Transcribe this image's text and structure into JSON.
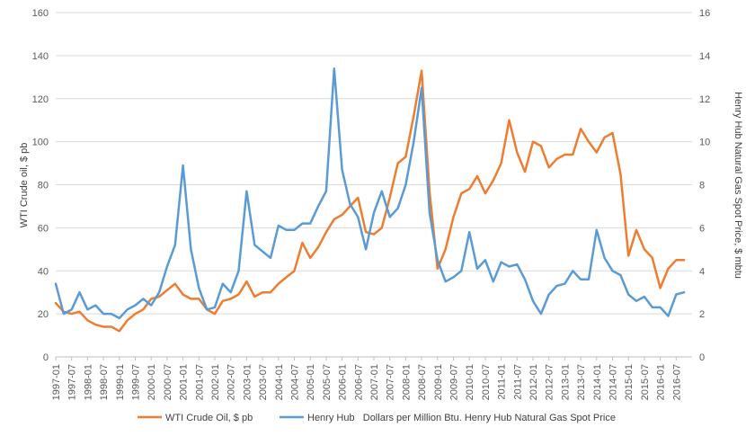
{
  "chart_data": {
    "type": "line",
    "title": "",
    "xlabel": "",
    "ylabel": "WTI Crude oil, $ pb",
    "y2label": "Henry Hub Natural  Gas Spot Price, $ mbtu",
    "ylim": [
      0,
      160
    ],
    "y2lim": [
      0,
      16
    ],
    "yticks": [
      "0",
      "20",
      "40",
      "60",
      "80",
      "100",
      "120",
      "140",
      "160"
    ],
    "y2ticks": [
      "0",
      "2",
      "4",
      "6",
      "8",
      "10",
      "12",
      "14",
      "16"
    ],
    "xticks": [
      "1997-01",
      "1997-07",
      "1998-01",
      "1998-07",
      "1999-01",
      "1999-07",
      "2000-01",
      "2000-07",
      "2001-01",
      "2001-07",
      "2002-01",
      "2002-07",
      "2003-01",
      "2003-07",
      "2004-01",
      "2004-07",
      "2005-01",
      "2005-07",
      "2006-01",
      "2006-07",
      "2007-01",
      "2007-07",
      "2008-01",
      "2008-07",
      "2009-01",
      "2009-07",
      "2010-01",
      "2010-07",
      "2011-01",
      "2011-07",
      "2012-01",
      "2012-07",
      "2013-01",
      "2013-07",
      "2014-01",
      "2014-07",
      "2015-01",
      "2015-07",
      "2016-01",
      "2016-07"
    ],
    "grid": true,
    "legend_position": "bottom",
    "series": [
      {
        "name": "WTI Crude Oil, $ pb",
        "axis": "left",
        "color": "#ED7D31",
        "x": [
          "1997-01",
          "1997-04",
          "1997-07",
          "1997-10",
          "1998-01",
          "1998-04",
          "1998-07",
          "1998-10",
          "1999-01",
          "1999-04",
          "1999-07",
          "1999-10",
          "2000-01",
          "2000-04",
          "2000-07",
          "2000-10",
          "2001-01",
          "2001-04",
          "2001-07",
          "2001-10",
          "2002-01",
          "2002-04",
          "2002-07",
          "2002-10",
          "2003-01",
          "2003-04",
          "2003-07",
          "2003-10",
          "2004-01",
          "2004-04",
          "2004-07",
          "2004-10",
          "2005-01",
          "2005-04",
          "2005-07",
          "2005-10",
          "2006-01",
          "2006-04",
          "2006-07",
          "2006-10",
          "2007-01",
          "2007-04",
          "2007-07",
          "2007-10",
          "2008-01",
          "2008-04",
          "2008-07",
          "2008-10",
          "2009-01",
          "2009-04",
          "2009-07",
          "2009-10",
          "2010-01",
          "2010-04",
          "2010-07",
          "2010-10",
          "2011-01",
          "2011-04",
          "2011-07",
          "2011-10",
          "2012-01",
          "2012-04",
          "2012-07",
          "2012-10",
          "2013-01",
          "2013-04",
          "2013-07",
          "2013-10",
          "2014-01",
          "2014-04",
          "2014-07",
          "2014-10",
          "2015-01",
          "2015-04",
          "2015-07",
          "2015-10",
          "2016-01",
          "2016-04",
          "2016-07",
          "2016-10"
        ],
        "values": [
          25,
          21,
          20,
          21,
          17,
          15,
          14,
          14,
          12,
          17,
          20,
          22,
          27,
          28,
          31,
          34,
          29,
          27,
          27,
          22,
          20,
          26,
          27,
          29,
          35,
          28,
          30,
          30,
          34,
          37,
          40,
          53,
          46,
          51,
          58,
          64,
          66,
          70,
          74,
          58,
          57,
          60,
          74,
          90,
          93,
          112,
          133,
          77,
          41,
          50,
          65,
          76,
          78,
          84,
          76,
          82,
          90,
          110,
          95,
          86,
          100,
          98,
          88,
          92,
          94,
          94,
          106,
          100,
          95,
          102,
          104,
          85,
          47,
          59,
          50,
          46,
          32,
          41,
          45,
          45
        ]
      },
      {
        "name": "Henry Hub   Dollars per Million Btu. Henry Hub Natural Gas Spot Price",
        "axis": "right",
        "color": "#5B9BD5",
        "x": [
          "1997-01",
          "1997-04",
          "1997-07",
          "1997-10",
          "1998-01",
          "1998-04",
          "1998-07",
          "1998-10",
          "1999-01",
          "1999-04",
          "1999-07",
          "1999-10",
          "2000-01",
          "2000-04",
          "2000-07",
          "2000-10",
          "2001-01",
          "2001-04",
          "2001-07",
          "2001-10",
          "2002-01",
          "2002-04",
          "2002-07",
          "2002-10",
          "2003-01",
          "2003-04",
          "2003-07",
          "2003-10",
          "2004-01",
          "2004-04",
          "2004-07",
          "2004-10",
          "2005-01",
          "2005-04",
          "2005-07",
          "2005-10",
          "2006-01",
          "2006-04",
          "2006-07",
          "2006-10",
          "2007-01",
          "2007-04",
          "2007-07",
          "2007-10",
          "2008-01",
          "2008-04",
          "2008-07",
          "2008-10",
          "2009-01",
          "2009-04",
          "2009-07",
          "2009-10",
          "2010-01",
          "2010-04",
          "2010-07",
          "2010-10",
          "2011-01",
          "2011-04",
          "2011-07",
          "2011-10",
          "2012-01",
          "2012-04",
          "2012-07",
          "2012-10",
          "2013-01",
          "2013-04",
          "2013-07",
          "2013-10",
          "2014-01",
          "2014-04",
          "2014-07",
          "2014-10",
          "2015-01",
          "2015-04",
          "2015-07",
          "2015-10",
          "2016-01",
          "2016-04",
          "2016-07",
          "2016-10"
        ],
        "values": [
          3.4,
          2.0,
          2.2,
          3.0,
          2.2,
          2.4,
          2.0,
          2.0,
          1.8,
          2.2,
          2.4,
          2.7,
          2.4,
          3.0,
          4.2,
          5.2,
          8.9,
          5.0,
          3.2,
          2.2,
          2.3,
          3.4,
          3.0,
          4.0,
          7.7,
          5.2,
          4.9,
          4.6,
          6.1,
          5.9,
          5.9,
          6.2,
          6.2,
          7.0,
          7.7,
          13.4,
          8.7,
          7.1,
          6.5,
          5.0,
          6.7,
          7.7,
          6.5,
          6.9,
          8.0,
          10.0,
          12.5,
          6.7,
          4.5,
          3.5,
          3.7,
          4.0,
          5.8,
          4.1,
          4.5,
          3.5,
          4.4,
          4.2,
          4.3,
          3.6,
          2.6,
          2.0,
          2.9,
          3.3,
          3.4,
          4.0,
          3.6,
          3.6,
          5.9,
          4.6,
          4.0,
          3.8,
          2.9,
          2.6,
          2.8,
          2.3,
          2.3,
          1.9,
          2.9,
          3.0
        ]
      }
    ]
  }
}
